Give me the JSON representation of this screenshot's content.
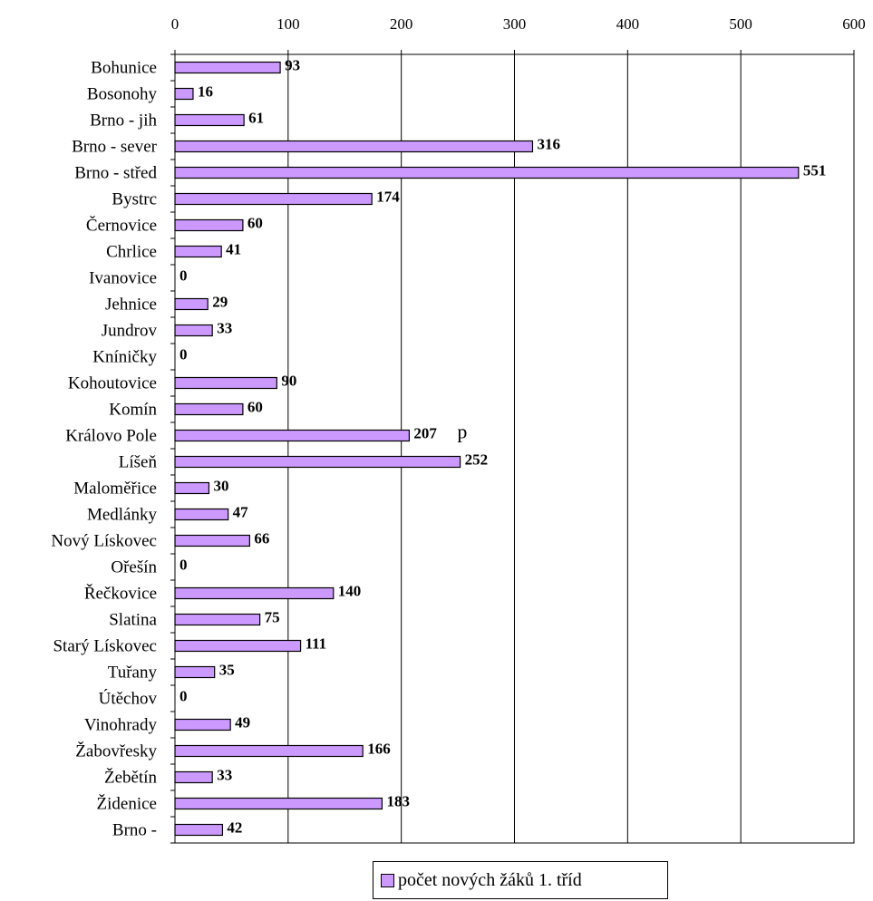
{
  "chart_data": {
    "type": "bar",
    "orientation": "horizontal",
    "categories": [
      "Bohunice",
      "Bosonohy",
      "Brno - jih",
      "Brno - sever",
      "Brno - střed",
      "Bystrc",
      "Černovice",
      "Chrlice",
      "Ivanovice",
      "Jehnice",
      "Jundrov",
      "Kníničky",
      "Kohoutovice",
      "Komín",
      "Královo Pole",
      "Líšeň",
      "Maloměřice",
      "Medlánky",
      "Nový Lískovec",
      "Ořešín",
      "Řečkovice",
      "Slatina",
      "Starý Lískovec",
      "Tuřany",
      "Útěchov",
      "Vinohrady",
      "Žabovřesky",
      "Žebětín",
      "Židenice",
      "Brno -"
    ],
    "series": [
      {
        "name": "počet nových žáků 1. tříd",
        "values": [
          93,
          16,
          61,
          316,
          551,
          174,
          60,
          41,
          0,
          29,
          33,
          0,
          90,
          60,
          207,
          252,
          30,
          47,
          66,
          0,
          140,
          75,
          111,
          35,
          0,
          49,
          166,
          33,
          183,
          42
        ]
      }
    ],
    "xlim": [
      0,
      600
    ],
    "x_ticks": [
      0,
      100,
      200,
      300,
      400,
      500,
      600
    ],
    "x_axis_position": "top",
    "grid": true,
    "bar_color": "#cc99ff",
    "data_labels": true,
    "legend": "bottom",
    "annotations": [
      {
        "text": "p",
        "category": "Královo Pole"
      }
    ]
  }
}
